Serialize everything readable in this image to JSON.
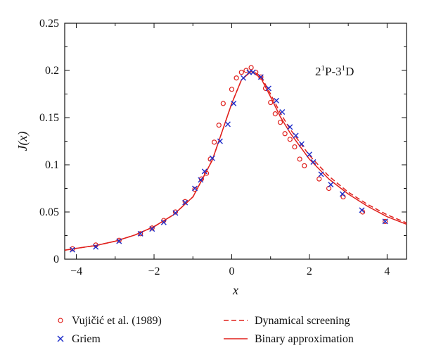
{
  "chart_data": {
    "type": "line",
    "xlabel": "x",
    "ylabel": "J(x)",
    "xlim": [
      -4.3,
      4.5
    ],
    "ylim": [
      0,
      0.25
    ],
    "xticks": [
      -4,
      -2,
      0,
      2,
      4
    ],
    "xtick_labels": [
      "−4",
      "−2",
      "0",
      "2",
      "4"
    ],
    "yticks": [
      0,
      0.05,
      0.1,
      0.15,
      0.2,
      0.25
    ],
    "ytick_labels": [
      "0",
      "0.05",
      "0.1",
      "0.15",
      "0.2",
      "0.25"
    ],
    "annotation": {
      "base": "2",
      "sup1": "1",
      "mid": "P-3",
      "sup2": "1",
      "end": "D"
    },
    "series": [
      {
        "name": "Vujičić et al. (1989)",
        "marker": "circle",
        "color": "#e0201c",
        "x": [
          -4.1,
          -3.5,
          -2.9,
          -2.35,
          -2.05,
          -1.75,
          -1.45,
          -1.2,
          -0.95,
          -0.78,
          -0.65,
          -0.55,
          -0.45,
          -0.33,
          -0.22,
          0.0,
          0.12,
          0.25,
          0.37,
          0.5,
          0.62,
          0.75,
          0.87,
          1.0,
          1.12,
          1.25,
          1.37,
          1.5,
          1.62,
          1.75,
          1.87,
          2.25,
          2.5,
          2.87,
          3.37,
          3.95
        ],
        "y": [
          0.011,
          0.015,
          0.02,
          0.027,
          0.033,
          0.041,
          0.05,
          0.061,
          0.074,
          0.085,
          0.091,
          0.106,
          0.124,
          0.142,
          0.165,
          0.18,
          0.192,
          0.198,
          0.2,
          0.203,
          0.198,
          0.193,
          0.181,
          0.166,
          0.154,
          0.145,
          0.133,
          0.127,
          0.119,
          0.106,
          0.099,
          0.085,
          0.075,
          0.066,
          0.05,
          0.04
        ]
      },
      {
        "name": "Griem",
        "marker": "x",
        "color": "#1f2ec9",
        "x": [
          -4.1,
          -3.5,
          -2.9,
          -2.35,
          -2.05,
          -1.75,
          -1.45,
          -1.2,
          -0.95,
          -0.8,
          -0.7,
          -0.5,
          -0.3,
          -0.1,
          0.05,
          0.3,
          0.45,
          0.55,
          0.75,
          0.95,
          1.15,
          1.3,
          1.5,
          1.65,
          1.8,
          2.0,
          2.1,
          2.3,
          2.55,
          2.85,
          3.35,
          3.95
        ],
        "y": [
          0.01,
          0.013,
          0.019,
          0.027,
          0.032,
          0.039,
          0.049,
          0.06,
          0.075,
          0.084,
          0.093,
          0.107,
          0.125,
          0.143,
          0.165,
          0.192,
          0.198,
          0.198,
          0.193,
          0.181,
          0.168,
          0.156,
          0.14,
          0.131,
          0.122,
          0.111,
          0.103,
          0.09,
          0.079,
          0.069,
          0.052,
          0.04
        ]
      },
      {
        "name": "Dynamical screening",
        "style": "dashed",
        "color": "#e0201c",
        "x": [
          -4.3,
          -4,
          -3.5,
          -3,
          -2.5,
          -2,
          -1.5,
          -1,
          -0.5,
          0,
          0.25,
          0.5,
          0.75,
          1,
          1.25,
          1.5,
          2,
          2.5,
          3,
          3.5,
          4,
          4.5
        ],
        "y": [
          0.0095,
          0.0115,
          0.0145,
          0.019,
          0.0255,
          0.0345,
          0.047,
          0.066,
          0.105,
          0.165,
          0.19,
          0.2,
          0.194,
          0.175,
          0.155,
          0.138,
          0.11,
          0.088,
          0.071,
          0.058,
          0.047,
          0.0385
        ]
      },
      {
        "name": "Binary approximation",
        "style": "solid",
        "color": "#e0201c",
        "x": [
          -4.3,
          -4,
          -3.5,
          -3,
          -2.5,
          -2,
          -1.5,
          -1,
          -0.5,
          0,
          0.25,
          0.5,
          0.75,
          1,
          1.25,
          1.5,
          2,
          2.5,
          3,
          3.5,
          4,
          4.5
        ],
        "y": [
          0.0095,
          0.0115,
          0.0145,
          0.019,
          0.0255,
          0.0345,
          0.047,
          0.066,
          0.105,
          0.165,
          0.19,
          0.199,
          0.192,
          0.172,
          0.151,
          0.134,
          0.106,
          0.085,
          0.069,
          0.056,
          0.045,
          0.037
        ]
      }
    ]
  }
}
